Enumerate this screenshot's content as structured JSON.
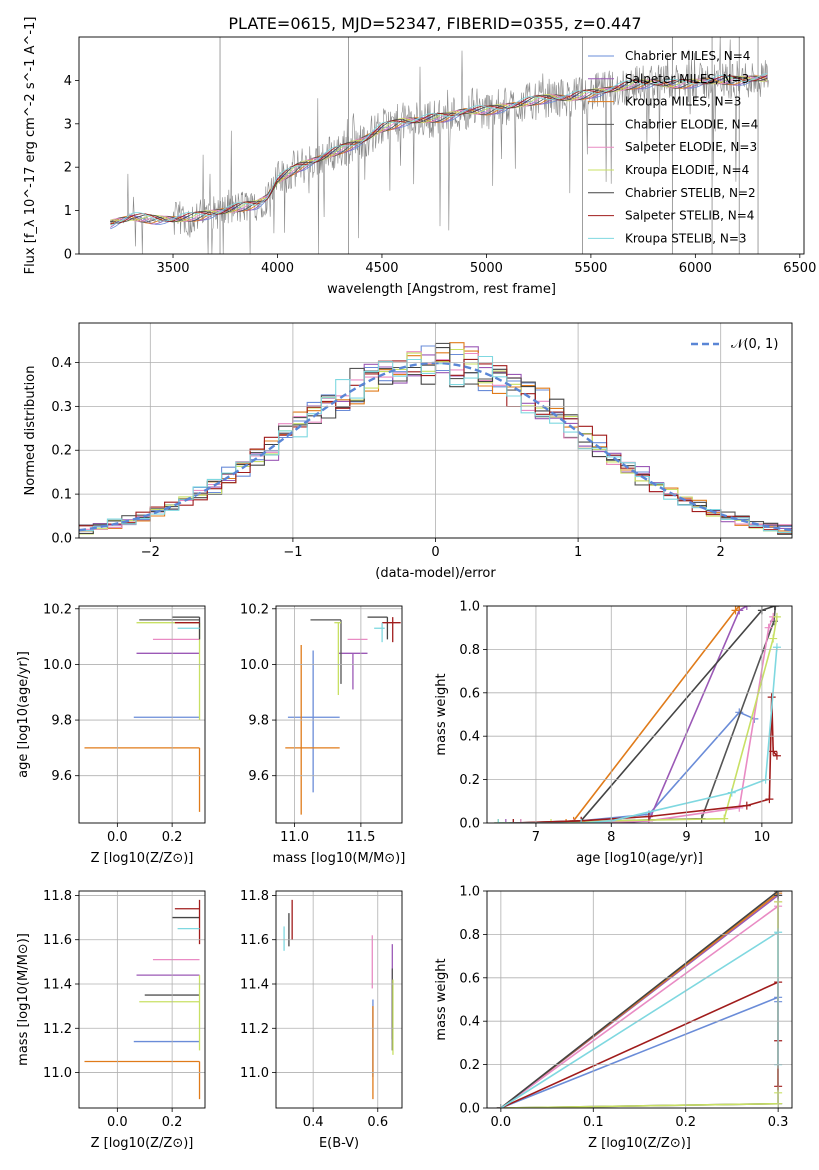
{
  "figure_title": "PLATE=0615, MJD=52347, FIBERID=0355, z=0.447",
  "colors": {
    "chabrier_miles": "#6a8cd8",
    "salpeter_miles": "#9b59b6",
    "kroupa_miles": "#e07b1a",
    "chabrier_elodie": "#555555",
    "salpeter_elodie": "#e98bc4",
    "kroupa_elodie": "#c8e064",
    "chabrier_stelib": "#444444",
    "salpeter_stelib": "#a01c1c",
    "kroupa_stelib": "#7fd8e0",
    "data": "#888888",
    "grid": "#b0b0b0"
  },
  "chart_data": [
    {
      "type": "line",
      "title": "PLATE=0615, MJD=52347, FIBERID=0355, z=0.447",
      "xlabel": "wavelength [Angstrom, rest frame]",
      "ylabel": "Flux [f_λ 10^-17 erg cm^-2 s^-1 A^-1]",
      "xlim": [
        3050,
        6520
      ],
      "ylim": [
        0,
        5
      ],
      "xticks": [
        "3500",
        "4000",
        "4500",
        "5000",
        "5500",
        "6000",
        "6500"
      ],
      "yticks": [
        "0",
        "1",
        "2",
        "3",
        "4"
      ],
      "grid": false,
      "legend_position": "top-right",
      "legend": [
        "Chabrier MILES, N_SSP=4",
        "Salpeter MILES, N_SSP=3",
        "Kroupa MILES, N_SSP=3",
        "Chabrier ELODIE, N_SSP=4",
        "Salpeter ELODIE, N_SSP=3",
        "Kroupa ELODIE, N_SSP=4",
        "Chabrier STELIB, N_SSP=2",
        "Salpeter STELIB, N_SSP=4",
        "Kroupa STELIB, N_SSP=3"
      ],
      "continuum": {
        "x": [
          3200,
          3300,
          3400,
          3500,
          3600,
          3700,
          3800,
          3900,
          3950,
          4000,
          4100,
          4200,
          4300,
          4400,
          4500,
          4600,
          4700,
          4800,
          4900,
          5000,
          5100,
          5200,
          5300,
          5400,
          5500,
          5600,
          5700,
          5800,
          5900,
          6000,
          6100,
          6200,
          6300,
          6350
        ],
        "y": [
          0.7,
          0.85,
          0.8,
          0.8,
          0.85,
          0.95,
          1.05,
          1.15,
          1.3,
          1.7,
          2.0,
          2.2,
          2.4,
          2.6,
          2.9,
          3.05,
          3.1,
          3.15,
          3.3,
          3.3,
          3.4,
          3.5,
          3.6,
          3.6,
          3.7,
          3.8,
          3.9,
          3.95,
          3.9,
          3.95,
          4.0,
          4.0,
          4.05,
          4.05
        ]
      },
      "data_range": [
        3200,
        6350
      ]
    },
    {
      "type": "bar",
      "xlabel": "(data-model)/error",
      "ylabel": "Normed distribution",
      "xlim": [
        -2.5,
        2.5
      ],
      "ylim": [
        0,
        0.49
      ],
      "xticks": [
        "−2",
        "−1",
        "0",
        "1",
        "2"
      ],
      "yticks": [
        "0.0",
        "0.1",
        "0.2",
        "0.3",
        "0.4"
      ],
      "grid": true,
      "legend_position": "top-right",
      "legend": [
        "𝒩(0, 1)"
      ],
      "bin_width": 0.1,
      "curve": "normal pdf, mean 0, sigma 1",
      "histograms": 9
    },
    {
      "type": "scatter",
      "xlabel": "Z [log10(Z/Z⊙)]",
      "ylabel": "age  [log10(age/yr)]",
      "xlim": [
        -0.14,
        0.32
      ],
      "ylim": [
        9.43,
        10.21
      ],
      "xticks": [
        "0.0",
        "0.2"
      ],
      "yticks": [
        "9.6",
        "9.8",
        "10.0",
        "10.2"
      ],
      "grid": true,
      "points": [
        {
          "series": "Chabrier MILES",
          "x": 0.3,
          "y": 9.81,
          "xmin": 0.06,
          "xmax": 0.3,
          "ymin": 9.81,
          "ymax": 9.81
        },
        {
          "series": "Salpeter MILES",
          "x": 0.3,
          "y": 10.04,
          "xmin": 0.07,
          "xmax": 0.3,
          "ymin": 10.04,
          "ymax": 10.04
        },
        {
          "series": "Kroupa MILES",
          "x": 0.3,
          "y": 9.7,
          "xmin": -0.12,
          "xmax": 0.3,
          "ymin": 9.47,
          "ymax": 9.7
        },
        {
          "series": "Chabrier ELODIE",
          "x": 0.3,
          "y": 10.16,
          "xmin": 0.08,
          "xmax": 0.3,
          "ymin": 10.16,
          "ymax": 10.16
        },
        {
          "series": "Salpeter ELODIE",
          "x": 0.3,
          "y": 10.09,
          "xmin": 0.13,
          "xmax": 0.3,
          "ymin": 10.09,
          "ymax": 10.09
        },
        {
          "series": "Kroupa ELODIE",
          "x": 0.3,
          "y": 10.15,
          "xmin": 0.07,
          "xmax": 0.3,
          "ymin": 9.8,
          "ymax": 10.15
        },
        {
          "series": "Chabrier STELIB",
          "x": 0.3,
          "y": 10.17,
          "xmin": 0.2,
          "xmax": 0.3,
          "ymin": 10.09,
          "ymax": 10.17
        },
        {
          "series": "Salpeter STELIB",
          "x": 0.3,
          "y": 10.15,
          "xmin": 0.21,
          "xmax": 0.3,
          "ymin": 10.15,
          "ymax": 10.15
        },
        {
          "series": "Kroupa STELIB",
          "x": 0.3,
          "y": 10.13,
          "xmin": 0.22,
          "xmax": 0.3,
          "ymin": 10.13,
          "ymax": 10.13
        }
      ]
    },
    {
      "type": "scatter",
      "xlabel": "mass [log10(M/M⊙)]",
      "ylabel": "",
      "xlim": [
        10.86,
        11.81
      ],
      "ylim": [
        9.43,
        10.21
      ],
      "xticks": [
        "11.0",
        "11.5"
      ],
      "yticks": [
        "9.6",
        "9.8",
        "10.0",
        "10.2"
      ],
      "grid": true,
      "points": [
        {
          "series": "Chabrier MILES",
          "x": 11.14,
          "y": 9.81,
          "xmin": 10.95,
          "xmax": 11.34,
          "ymin": 9.54,
          "ymax": 10.05
        },
        {
          "series": "Salpeter MILES",
          "x": 11.44,
          "y": 10.04,
          "xmin": 11.33,
          "xmax": 11.55,
          "ymin": 9.91,
          "ymax": 10.04
        },
        {
          "series": "Kroupa MILES",
          "x": 11.05,
          "y": 9.7,
          "xmin": 10.93,
          "xmax": 11.34,
          "ymin": 9.46,
          "ymax": 10.07
        },
        {
          "series": "Chabrier ELODIE",
          "x": 11.35,
          "y": 10.16,
          "xmin": 11.12,
          "xmax": 11.35,
          "ymin": 9.93,
          "ymax": 10.16
        },
        {
          "series": "Salpeter ELODIE",
          "x": 11.51,
          "y": 10.09,
          "xmin": 11.4,
          "xmax": 11.55,
          "ymin": 10.09,
          "ymax": 10.09
        },
        {
          "series": "Kroupa ELODIE",
          "x": 11.33,
          "y": 10.15,
          "xmin": 11.3,
          "xmax": 11.35,
          "ymin": 9.89,
          "ymax": 10.15
        },
        {
          "series": "Chabrier STELIB",
          "x": 11.7,
          "y": 10.17,
          "xmin": 11.55,
          "xmax": 11.7,
          "ymin": 10.09,
          "ymax": 10.17
        },
        {
          "series": "Salpeter STELIB",
          "x": 11.74,
          "y": 10.15,
          "xmin": 11.66,
          "xmax": 11.8,
          "ymin": 10.08,
          "ymax": 10.17
        },
        {
          "series": "Kroupa STELIB",
          "x": 11.66,
          "y": 10.13,
          "xmin": 11.6,
          "xmax": 11.68,
          "ymin": 10.08,
          "ymax": 10.15
        }
      ]
    },
    {
      "type": "line",
      "xlabel": "age  [log10(age/yr)]",
      "ylabel": "mass weight",
      "xlim": [
        6.35,
        10.4
      ],
      "ylim": [
        0,
        1
      ],
      "xticks": [
        "7",
        "8",
        "9",
        "10"
      ],
      "yticks": [
        "0.0",
        "0.2",
        "0.4",
        "0.6",
        "0.8",
        "1.0"
      ],
      "grid": true,
      "series": [
        {
          "name": "Chabrier MILES",
          "x": [
            6.5,
            7.5,
            7.6,
            8.5,
            9.7,
            9.9
          ],
          "y": [
            0.0,
            0.0,
            0.01,
            0.04,
            0.51,
            0.48
          ]
        },
        {
          "name": "Salpeter MILES",
          "x": [
            6.6,
            8.0,
            8.5,
            9.7,
            9.8
          ],
          "y": [
            0.0,
            0.0,
            0.01,
            0.98,
            1.0
          ]
        },
        {
          "name": "Kroupa MILES",
          "x": [
            6.5,
            7.4,
            7.5,
            9.65,
            9.7
          ],
          "y": [
            0.0,
            0.0,
            0.01,
            0.98,
            1.0
          ]
        },
        {
          "name": "Chabrier ELODIE",
          "x": [
            6.8,
            7.5,
            8.0,
            9.2,
            10.16,
            10.18
          ],
          "y": [
            0.0,
            0.0,
            0.01,
            0.02,
            0.93,
            1.0
          ]
        },
        {
          "name": "Salpeter ELODIE",
          "x": [
            6.8,
            7.5,
            8.5,
            9.7,
            10.09,
            10.15
          ],
          "y": [
            0.0,
            0.0,
            0.01,
            0.07,
            0.9,
            0.95
          ]
        },
        {
          "name": "Kroupa ELODIE",
          "x": [
            6.5,
            7.2,
            8.0,
            9.5,
            10.15,
            10.2
          ],
          "y": [
            0.0,
            0.0,
            0.01,
            0.02,
            0.85,
            0.95
          ]
        },
        {
          "name": "Chabrier STELIB",
          "x": [
            6.7,
            7.6,
            10.0,
            10.17
          ],
          "y": [
            0.0,
            0.01,
            0.98,
            1.0
          ]
        },
        {
          "name": "Salpeter STELIB",
          "x": [
            6.7,
            7.6,
            8.5,
            9.8,
            10.1,
            10.13,
            10.15,
            10.2
          ],
          "y": [
            0.0,
            0.01,
            0.03,
            0.08,
            0.11,
            0.58,
            0.33,
            0.31
          ]
        },
        {
          "name": "Kroupa STELIB",
          "x": [
            6.5,
            7.6,
            8.0,
            9.6,
            10.05,
            10.2
          ],
          "y": [
            0.0,
            0.0,
            0.01,
            0.14,
            0.2,
            0.81
          ]
        }
      ]
    },
    {
      "type": "scatter",
      "xlabel": "Z [log10(Z/Z⊙)]",
      "ylabel": "mass [log10(M/M⊙)]",
      "xlim": [
        -0.14,
        0.32
      ],
      "ylim": [
        10.84,
        11.82
      ],
      "xticks": [
        "0.0",
        "0.2"
      ],
      "yticks": [
        "11.0",
        "11.2",
        "11.4",
        "11.6",
        "11.8"
      ],
      "grid": true,
      "points": [
        {
          "series": "Chabrier MILES",
          "x": 0.3,
          "y": 11.14,
          "xmin": 0.06,
          "xmax": 0.3,
          "ymin": 11.14,
          "ymax": 11.14
        },
        {
          "series": "Salpeter MILES",
          "x": 0.3,
          "y": 11.44,
          "xmin": 0.07,
          "xmax": 0.3,
          "ymin": 11.44,
          "ymax": 11.44
        },
        {
          "series": "Kroupa MILES",
          "x": 0.3,
          "y": 11.05,
          "xmin": -0.12,
          "xmax": 0.3,
          "ymin": 10.88,
          "ymax": 11.05
        },
        {
          "series": "Chabrier ELODIE",
          "x": 0.3,
          "y": 11.35,
          "xmin": 0.1,
          "xmax": 0.3,
          "ymin": 11.35,
          "ymax": 11.35
        },
        {
          "series": "Salpeter ELODIE",
          "x": 0.3,
          "y": 11.51,
          "xmin": 0.13,
          "xmax": 0.3,
          "ymin": 11.51,
          "ymax": 11.51
        },
        {
          "series": "Kroupa ELODIE",
          "x": 0.3,
          "y": 11.32,
          "xmin": 0.08,
          "xmax": 0.3,
          "ymin": 11.1,
          "ymax": 11.44
        },
        {
          "series": "Chabrier STELIB",
          "x": 0.3,
          "y": 11.7,
          "xmin": 0.2,
          "xmax": 0.3,
          "ymin": 11.7,
          "ymax": 11.7
        },
        {
          "series": "Salpeter STELIB",
          "x": 0.3,
          "y": 11.74,
          "xmin": 0.21,
          "xmax": 0.3,
          "ymin": 11.58,
          "ymax": 11.78
        },
        {
          "series": "Kroupa STELIB",
          "x": 0.3,
          "y": 11.65,
          "xmin": 0.22,
          "xmax": 0.3,
          "ymin": 11.65,
          "ymax": 11.65
        }
      ]
    },
    {
      "type": "scatter",
      "xlabel": "E(B-V)",
      "ylabel": "",
      "xlim": [
        0.285,
        0.675
      ],
      "ylim": [
        10.84,
        11.82
      ],
      "xticks": [
        "0.4",
        "0.6"
      ],
      "yticks": [
        "11.0",
        "11.2",
        "11.4",
        "11.6",
        "11.8"
      ],
      "grid": true,
      "points": [
        {
          "series": "Chabrier MILES",
          "x": 0.585,
          "y": 11.14,
          "ymin": 10.98,
          "ymax": 11.33
        },
        {
          "series": "Salpeter MILES",
          "x": 0.645,
          "y": 11.44,
          "ymin": 11.15,
          "ymax": 11.58
        },
        {
          "series": "Kroupa MILES",
          "x": 0.585,
          "y": 11.05,
          "ymin": 10.88,
          "ymax": 11.3
        },
        {
          "series": "Chabrier ELODIE",
          "x": 0.645,
          "y": 11.35,
          "ymin": 11.1,
          "ymax": 11.47
        },
        {
          "series": "Salpeter ELODIE",
          "x": 0.583,
          "y": 11.51,
          "ymin": 11.38,
          "ymax": 11.62
        },
        {
          "series": "Kroupa ELODIE",
          "x": 0.647,
          "y": 11.32,
          "ymin": 11.08,
          "ymax": 11.42
        },
        {
          "series": "Chabrier STELIB",
          "x": 0.325,
          "y": 11.7,
          "ymin": 11.57,
          "ymax": 11.72
        },
        {
          "series": "Salpeter STELIB",
          "x": 0.335,
          "y": 11.74,
          "ymin": 11.6,
          "ymax": 11.78
        },
        {
          "series": "Kroupa STELIB",
          "x": 0.31,
          "y": 11.65,
          "ymin": 11.55,
          "ymax": 11.66
        }
      ]
    },
    {
      "type": "line",
      "xlabel": "Z [log10(Z/Z⊙)]",
      "ylabel": "mass weight",
      "xlim": [
        -0.015,
        0.315
      ],
      "ylim": [
        0,
        1
      ],
      "xticks": [
        "0.0",
        "0.1",
        "0.2",
        "0.3"
      ],
      "yticks": [
        "0.0",
        "0.2",
        "0.4",
        "0.6",
        "0.8",
        "1.0"
      ],
      "grid": true,
      "series": [
        {
          "name": "Chabrier MILES",
          "x": [
            0.0,
            0.3,
            0.3
          ],
          "y": [
            0.0,
            0.51,
            0.49
          ]
        },
        {
          "name": "Salpeter MILES",
          "x": [
            0.0,
            0.3,
            0.3
          ],
          "y": [
            0.0,
            0.98,
            1.0
          ]
        },
        {
          "name": "Kroupa MILES",
          "x": [
            0.0,
            0.3,
            0.3
          ],
          "y": [
            0.0,
            0.99,
            1.0
          ]
        },
        {
          "name": "Chabrier ELODIE",
          "x": [
            0.0,
            0.3,
            0.3
          ],
          "y": [
            0.0,
            0.02,
            1.0
          ]
        },
        {
          "name": "Salpeter ELODIE",
          "x": [
            0.0,
            0.3,
            0.3
          ],
          "y": [
            0.0,
            0.93,
            0.95
          ]
        },
        {
          "name": "Kroupa ELODIE",
          "x": [
            0.0,
            0.3,
            0.3,
            0.3
          ],
          "y": [
            0.0,
            0.02,
            0.95,
            0.07
          ]
        },
        {
          "name": "Chabrier STELIB",
          "x": [
            0.0,
            0.3,
            0.3
          ],
          "y": [
            0.0,
            1.0,
            0.98
          ]
        },
        {
          "name": "Salpeter STELIB",
          "x": [
            0.0,
            0.3,
            0.3,
            0.3
          ],
          "y": [
            0.0,
            0.58,
            0.31,
            0.1
          ]
        },
        {
          "name": "Kroupa STELIB",
          "x": [
            0.0,
            0.3,
            0.3
          ],
          "y": [
            0.0,
            0.81,
            0.2
          ]
        }
      ]
    }
  ]
}
